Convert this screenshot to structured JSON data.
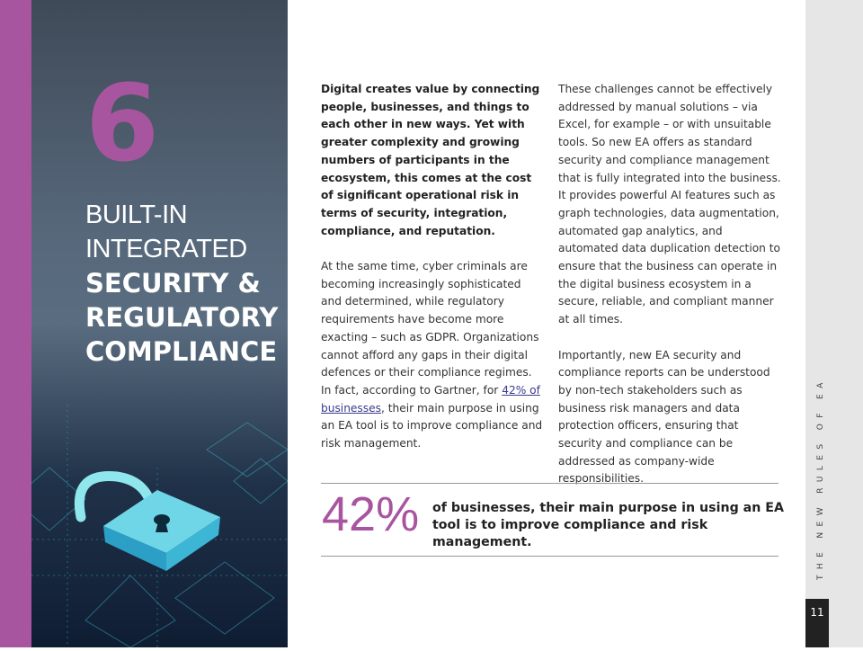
{
  "chapter": {
    "number": "6",
    "heading_light": [
      "BUILT-IN",
      "INTEGRATED"
    ],
    "heading_bold": [
      "SECURITY &",
      "REGULATORY",
      "COMPLIANCE"
    ]
  },
  "column_1": {
    "intro": "Digital creates value by connecting people, businesses, and things to each other in new ways. Yet with greater complexity and growing numbers of participants in the ecosystem, this comes at the cost of significant operational risk in terms of security, integration, compliance, and reputation.",
    "paragraph": {
      "before_link": "At the same time, cyber criminals are becoming increasingly sophisticated and determined, while regulatory requirements have become more exacting – such as GDPR. Organizations cannot afford any gaps in their digital defences or their compliance regimes. In fact, according to Gartner, for ",
      "link": "42% of businesses",
      "after_link": ", their main purpose in using an EA tool is to improve compliance and risk management."
    }
  },
  "column_2": {
    "paragraphs": [
      "These challenges cannot be effectively addressed by manual solutions – via Excel, for example – or with unsuitable tools. So new EA offers as standard security and compliance management that is fully integrated into the business. It provides powerful AI features such as graph technologies, data augmentation, automated gap analytics, and automated data duplication detection to ensure that the business can operate in the digital business ecosystem in a secure, reliable, and compliant manner at all times.",
      "Importantly, new EA security and compliance reports can be understood by non-tech stakeholders such as business risk managers and data protection officers, ensuring that security and compliance can be addressed as company-wide responsibilities."
    ]
  },
  "callout": {
    "figure": "42%",
    "text": "of businesses, their main purpose in using an EA tool is to improve compliance and risk management."
  },
  "sidebar": {
    "label": "THE NEW RULES OF EA",
    "page": "11"
  }
}
